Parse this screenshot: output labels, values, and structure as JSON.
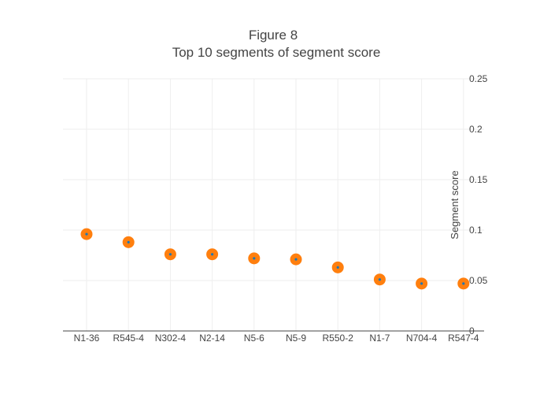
{
  "title_line1": "Figure 8",
  "title_line2": "Top 10 segments of segment score",
  "colors": {
    "marker": "#ff7f0e",
    "marker_center": "#1f77b4",
    "grid": "#eeeeee",
    "text": "#444444"
  },
  "chart_data": {
    "type": "scatter",
    "title": "Figure 8 Top 10 segments of segment score",
    "xlabel": "",
    "ylabel": "Segment score",
    "categories": [
      "N1-36",
      "R545-4",
      "N302-4",
      "N2-14",
      "N5-6",
      "N5-9",
      "R550-2",
      "N1-7",
      "N704-4",
      "R547-4"
    ],
    "values": [
      0.096,
      0.088,
      0.076,
      0.076,
      0.072,
      0.071,
      0.063,
      0.051,
      0.047,
      0.047
    ],
    "ylim": [
      0,
      0.25
    ],
    "yticks": [
      0,
      0.05,
      0.1,
      0.15,
      0.2,
      0.25
    ],
    "ytick_labels": [
      "0",
      "0.05",
      "0.1",
      "0.15",
      "0.2",
      "0.25"
    ],
    "y_axis_side": "right",
    "grid": true
  }
}
